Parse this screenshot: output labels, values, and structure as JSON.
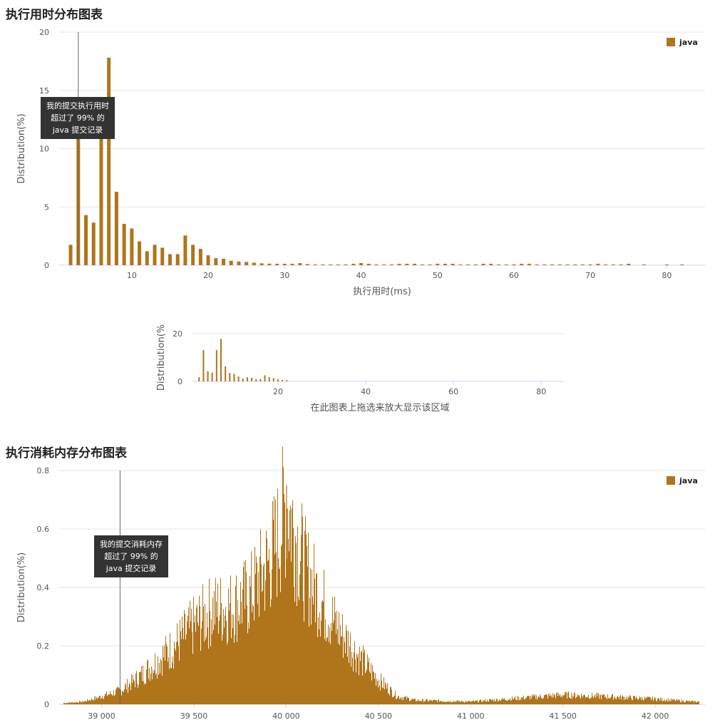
{
  "runtime_title": "执行用时分布图表",
  "memory_title": "执行消耗内存分布图表",
  "colors": {
    "bar": "#b0741a",
    "grid": "#e6e6e6",
    "axis": "#ccd6eb",
    "marker": "#666666",
    "tooltip_bg": "#333333"
  },
  "runtime_tooltip": {
    "line1": "我的提交执行用时",
    "line2": "超过了 99% 的",
    "line3": "java 提交记录"
  },
  "memory_tooltip": {
    "line1": "我的提交消耗内存",
    "line2": "超过了 99% 的",
    "line3": "java 提交记录"
  },
  "navigator_label": "在此图表上拖选来放大显示该区域",
  "chart_data": [
    {
      "type": "bar",
      "xlabel": "执行用时(ms)",
      "ylabel": "Distribution(%)",
      "legend": {
        "name": "java",
        "position": "top-right"
      },
      "xlim": [
        0.5,
        85
      ],
      "ylim": [
        0,
        20
      ],
      "xticks": [
        10,
        20,
        30,
        40,
        50,
        60,
        70,
        80
      ],
      "yticks": [
        0,
        5,
        10,
        15,
        20
      ],
      "grid": true,
      "my_submission_x": 3,
      "x": [
        2,
        3,
        4,
        5,
        6,
        7,
        8,
        9,
        10,
        11,
        12,
        13,
        14,
        15,
        16,
        17,
        18,
        19,
        20,
        21,
        22,
        23,
        24,
        25,
        26,
        27,
        28,
        29,
        30,
        31,
        32,
        33,
        34,
        35,
        36,
        37,
        38,
        39,
        40,
        41,
        42,
        43,
        44,
        45,
        46,
        47,
        48,
        49,
        50,
        51,
        52,
        53,
        54,
        55,
        56,
        57,
        58,
        59,
        60,
        61,
        62,
        63,
        64,
        65,
        66,
        67,
        68,
        69,
        70,
        71,
        72,
        73,
        74,
        75,
        77,
        80,
        82
      ],
      "values": [
        1.75,
        13.1,
        4.3,
        3.65,
        13.1,
        17.8,
        6.3,
        3.55,
        3.15,
        2.05,
        1.2,
        1.75,
        1.5,
        0.95,
        0.95,
        2.55,
        1.75,
        1.4,
        0.85,
        0.6,
        0.55,
        0.38,
        0.32,
        0.28,
        0.22,
        0.16,
        0.13,
        0.12,
        0.12,
        0.12,
        0.18,
        0.1,
        0.05,
        0.05,
        0.05,
        0.05,
        0.05,
        0.12,
        0.18,
        0.12,
        0.05,
        0.05,
        0.05,
        0.12,
        0.12,
        0.12,
        0.05,
        0.05,
        0.12,
        0.12,
        0.12,
        0.05,
        0.05,
        0.05,
        0.12,
        0.12,
        0.05,
        0.05,
        0.05,
        0.12,
        0.12,
        0.05,
        0.05,
        0.05,
        0.05,
        0.05,
        0.05,
        0.05,
        0.05,
        0.12,
        0.05,
        0.05,
        0.05,
        0.12,
        0.05,
        0.05,
        0.05
      ]
    },
    {
      "type": "bar",
      "title": "",
      "xlabel": "",
      "ylabel": "Distribution(%",
      "xlim": [
        0.5,
        85
      ],
      "ylim": [
        0,
        20
      ],
      "xticks": [
        20,
        40,
        60,
        80
      ],
      "yticks": [
        0,
        20
      ],
      "grid": true,
      "role": "navigator",
      "x": [
        2,
        3,
        4,
        5,
        6,
        7,
        8,
        9,
        10,
        11,
        12,
        13,
        14,
        15,
        16,
        17,
        18,
        19,
        20,
        21,
        22
      ],
      "values": [
        1.75,
        13.1,
        4.3,
        3.65,
        13.1,
        17.8,
        6.3,
        3.55,
        3.15,
        2.05,
        1.2,
        1.75,
        1.5,
        0.95,
        0.95,
        2.55,
        1.75,
        1.4,
        0.85,
        0.6,
        0.55
      ]
    },
    {
      "type": "bar",
      "ylabel": "Distribution(%)",
      "xlabel": "",
      "legend": {
        "name": "java",
        "position": "top-right"
      },
      "xlim": [
        38770,
        42270
      ],
      "ylim": [
        0,
        0.8
      ],
      "xticks": [
        39000,
        39500,
        40000,
        40500,
        41000,
        41500,
        42000
      ],
      "xtick_labels": [
        "39 000",
        "39 500",
        "40 000",
        "40 500",
        "41 000",
        "41 500",
        "42 000"
      ],
      "yticks": [
        0,
        0.2,
        0.4,
        0.6,
        0.8
      ],
      "grid": true,
      "my_submission_x": 39100,
      "x": [
        38800,
        38900,
        39000,
        39100,
        39200,
        39300,
        39400,
        39500,
        39600,
        39700,
        39800,
        39900,
        39950,
        40000,
        40100,
        40200,
        40300,
        40400,
        40500,
        40600,
        40700,
        41000,
        41300,
        41500,
        41700,
        42000,
        42200
      ],
      "values": [
        0.005,
        0.01,
        0.03,
        0.05,
        0.1,
        0.16,
        0.22,
        0.29,
        0.35,
        0.36,
        0.4,
        0.52,
        0.6,
        0.75,
        0.5,
        0.37,
        0.26,
        0.17,
        0.09,
        0.03,
        0.015,
        0.01,
        0.025,
        0.035,
        0.03,
        0.02,
        0.01
      ]
    }
  ]
}
